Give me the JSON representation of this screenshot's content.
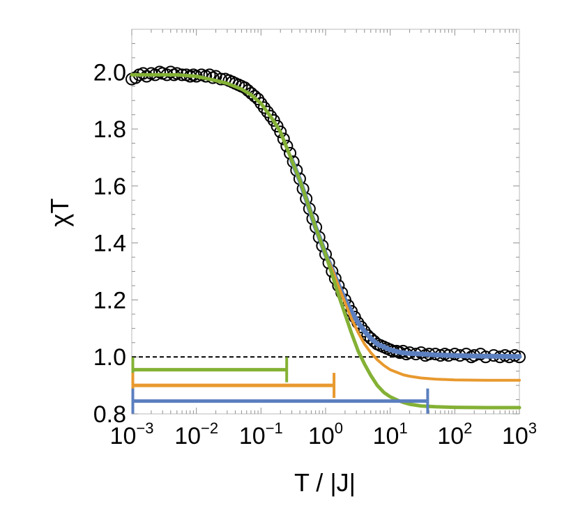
{
  "chart_data": {
    "type": "line",
    "title": "",
    "xlabel": "T / |J|",
    "ylabel": "χT",
    "x_scale": "log10",
    "xlim": [
      0.001,
      1000
    ],
    "ylim": [
      0.8,
      2.15
    ],
    "grid": false,
    "legend": "none",
    "x_ticks": [
      {
        "value": 0.001,
        "base": "10",
        "exp": "−3"
      },
      {
        "value": 0.01,
        "base": "10",
        "exp": "−2"
      },
      {
        "value": 0.1,
        "base": "10",
        "exp": "−1"
      },
      {
        "value": 1,
        "base": "10",
        "exp": "0"
      },
      {
        "value": 10,
        "base": "10",
        "exp": "1"
      },
      {
        "value": 100,
        "base": "10",
        "exp": "2"
      },
      {
        "value": 1000,
        "base": "10",
        "exp": "3"
      }
    ],
    "y_ticks": [
      {
        "value": 0.8,
        "label": "0.8"
      },
      {
        "value": 1.0,
        "label": "1.0"
      },
      {
        "value": 1.2,
        "label": "1.2"
      },
      {
        "value": 1.4,
        "label": "1.4"
      },
      {
        "value": 1.6,
        "label": "1.6"
      },
      {
        "value": 1.8,
        "label": "1.8"
      },
      {
        "value": 2.0,
        "label": "2.0"
      }
    ],
    "reference_line": {
      "y": 1.0,
      "style": "dashed",
      "color": "#000000"
    },
    "markers": {
      "style": "open-circle",
      "color": "#000000",
      "points": [
        [
          0.001,
          1.975
        ],
        [
          0.00115,
          1.98
        ],
        [
          0.0013,
          1.99
        ],
        [
          0.0015,
          1.995
        ],
        [
          0.0017,
          1.985
        ],
        [
          0.002,
          1.995
        ],
        [
          0.0023,
          1.99
        ],
        [
          0.0027,
          2.0
        ],
        [
          0.003,
          1.995
        ],
        [
          0.0035,
          1.99
        ],
        [
          0.004,
          2.0
        ],
        [
          0.0045,
          1.99
        ],
        [
          0.005,
          1.995
        ],
        [
          0.006,
          1.99
        ],
        [
          0.007,
          1.99
        ],
        [
          0.008,
          1.985
        ],
        [
          0.009,
          1.99
        ],
        [
          0.01,
          1.985
        ],
        [
          0.012,
          1.99
        ],
        [
          0.014,
          1.985
        ],
        [
          0.016,
          1.99
        ],
        [
          0.018,
          1.98
        ],
        [
          0.02,
          1.985
        ],
        [
          0.024,
          1.975
        ],
        [
          0.028,
          1.975
        ],
        [
          0.032,
          1.97
        ],
        [
          0.036,
          1.965
        ],
        [
          0.04,
          1.96
        ],
        [
          0.045,
          1.955
        ],
        [
          0.05,
          1.95
        ],
        [
          0.056,
          1.945
        ],
        [
          0.063,
          1.935
        ],
        [
          0.071,
          1.925
        ],
        [
          0.08,
          1.915
        ],
        [
          0.09,
          1.905
        ],
        [
          0.1,
          1.89
        ],
        [
          0.112,
          1.875
        ],
        [
          0.126,
          1.86
        ],
        [
          0.141,
          1.845
        ],
        [
          0.158,
          1.83
        ],
        [
          0.178,
          1.81
        ],
        [
          0.2,
          1.79
        ],
        [
          0.224,
          1.765
        ],
        [
          0.251,
          1.74
        ],
        [
          0.282,
          1.715
        ],
        [
          0.316,
          1.685
        ],
        [
          0.355,
          1.655
        ],
        [
          0.398,
          1.625
        ],
        [
          0.447,
          1.59
        ],
        [
          0.501,
          1.555
        ],
        [
          0.562,
          1.52
        ],
        [
          0.631,
          1.485
        ],
        [
          0.708,
          1.455
        ],
        [
          0.794,
          1.42
        ],
        [
          0.891,
          1.39
        ],
        [
          1.0,
          1.36
        ],
        [
          1.12,
          1.33
        ],
        [
          1.26,
          1.3
        ],
        [
          1.41,
          1.275
        ],
        [
          1.58,
          1.25
        ],
        [
          1.78,
          1.225
        ],
        [
          2.0,
          1.2
        ],
        [
          2.24,
          1.18
        ],
        [
          2.51,
          1.16
        ],
        [
          2.82,
          1.14
        ],
        [
          3.16,
          1.12
        ],
        [
          3.55,
          1.105
        ],
        [
          3.98,
          1.09
        ],
        [
          4.47,
          1.075
        ],
        [
          5.01,
          1.065
        ],
        [
          5.62,
          1.055
        ],
        [
          6.31,
          1.045
        ],
        [
          7.08,
          1.04
        ],
        [
          7.94,
          1.035
        ],
        [
          8.91,
          1.03
        ],
        [
          10.0,
          1.025
        ],
        [
          11.2,
          1.02
        ],
        [
          12.6,
          1.02
        ],
        [
          14.1,
          1.015
        ],
        [
          15.8,
          1.02
        ],
        [
          17.8,
          1.01
        ],
        [
          20,
          1.015
        ],
        [
          25,
          1.01
        ],
        [
          30,
          1.015
        ],
        [
          35,
          1.005
        ],
        [
          40,
          1.01
        ],
        [
          50,
          1.01
        ],
        [
          60,
          1.005
        ],
        [
          70,
          1.01
        ],
        [
          80,
          1.005
        ],
        [
          100,
          1.01
        ],
        [
          120,
          1.005
        ],
        [
          150,
          1.01
        ],
        [
          180,
          1.0
        ],
        [
          200,
          1.005
        ],
        [
          250,
          1.01
        ],
        [
          300,
          1.0
        ],
        [
          400,
          1.005
        ],
        [
          500,
          1.0
        ],
        [
          600,
          1.005
        ],
        [
          700,
          1.0
        ],
        [
          850,
          1.005
        ],
        [
          1000,
          1.0
        ]
      ]
    },
    "series": [
      {
        "color": "#5b7fbf",
        "stroke": 7,
        "points": [
          [
            0.3,
            1.69
          ],
          [
            0.4,
            1.62
          ],
          [
            0.5,
            1.555
          ],
          [
            0.6,
            1.5
          ],
          [
            0.7,
            1.455
          ],
          [
            0.8,
            1.42
          ],
          [
            1.0,
            1.36
          ],
          [
            1.3,
            1.3
          ],
          [
            1.6,
            1.25
          ],
          [
            2.0,
            1.2
          ],
          [
            2.5,
            1.16
          ],
          [
            3.2,
            1.12
          ],
          [
            4.0,
            1.09
          ],
          [
            5.0,
            1.065
          ],
          [
            6.3,
            1.045
          ],
          [
            8.0,
            1.035
          ],
          [
            10,
            1.025
          ],
          [
            15,
            1.015
          ],
          [
            20,
            1.012
          ],
          [
            30,
            1.01
          ],
          [
            50,
            1.007
          ],
          [
            100,
            1.005
          ],
          [
            200,
            1.003
          ],
          [
            500,
            1.002
          ],
          [
            1000,
            1.001
          ]
        ]
      },
      {
        "color": "#e8992e",
        "stroke": 4,
        "points": [
          [
            0.5,
            1.555
          ],
          [
            0.7,
            1.455
          ],
          [
            1.0,
            1.36
          ],
          [
            1.3,
            1.3
          ],
          [
            1.6,
            1.245
          ],
          [
            2.0,
            1.19
          ],
          [
            2.5,
            1.135
          ],
          [
            3.2,
            1.085
          ],
          [
            4.0,
            1.045
          ],
          [
            5.0,
            1.015
          ],
          [
            6.3,
            0.99
          ],
          [
            8.0,
            0.97
          ],
          [
            10,
            0.955
          ],
          [
            13,
            0.945
          ],
          [
            16,
            0.937
          ],
          [
            20,
            0.932
          ],
          [
            30,
            0.926
          ],
          [
            50,
            0.922
          ],
          [
            100,
            0.919
          ],
          [
            300,
            0.918
          ],
          [
            1000,
            0.918
          ]
        ]
      },
      {
        "color": "#84b135",
        "stroke": 5,
        "points": [
          [
            0.001,
            1.99
          ],
          [
            0.002,
            1.99
          ],
          [
            0.005,
            1.99
          ],
          [
            0.01,
            1.985
          ],
          [
            0.02,
            1.97
          ],
          [
            0.03,
            1.96
          ],
          [
            0.05,
            1.94
          ],
          [
            0.07,
            1.92
          ],
          [
            0.1,
            1.89
          ],
          [
            0.15,
            1.835
          ],
          [
            0.2,
            1.79
          ],
          [
            0.3,
            1.69
          ],
          [
            0.4,
            1.62
          ],
          [
            0.5,
            1.555
          ],
          [
            0.7,
            1.455
          ],
          [
            1.0,
            1.36
          ],
          [
            1.3,
            1.28
          ],
          [
            1.6,
            1.215
          ],
          [
            2.0,
            1.15
          ],
          [
            2.5,
            1.085
          ],
          [
            3.2,
            1.02
          ],
          [
            4.0,
            0.975
          ],
          [
            5.0,
            0.935
          ],
          [
            6.3,
            0.9
          ],
          [
            8.0,
            0.875
          ],
          [
            10,
            0.86
          ],
          [
            13,
            0.848
          ],
          [
            16,
            0.84
          ],
          [
            20,
            0.834
          ],
          [
            30,
            0.828
          ],
          [
            50,
            0.825
          ],
          [
            100,
            0.823
          ],
          [
            300,
            0.822
          ],
          [
            1000,
            0.822
          ]
        ]
      }
    ],
    "ranges": [
      {
        "color": "#84b135",
        "x_from": 0.001,
        "x_to": 0.25,
        "y": 0.955
      },
      {
        "color": "#e8992e",
        "x_from": 0.001,
        "x_to": 1.35,
        "y": 0.9
      },
      {
        "color": "#5b7fbf",
        "x_from": 0.001,
        "x_to": 38,
        "y": 0.845
      }
    ]
  }
}
